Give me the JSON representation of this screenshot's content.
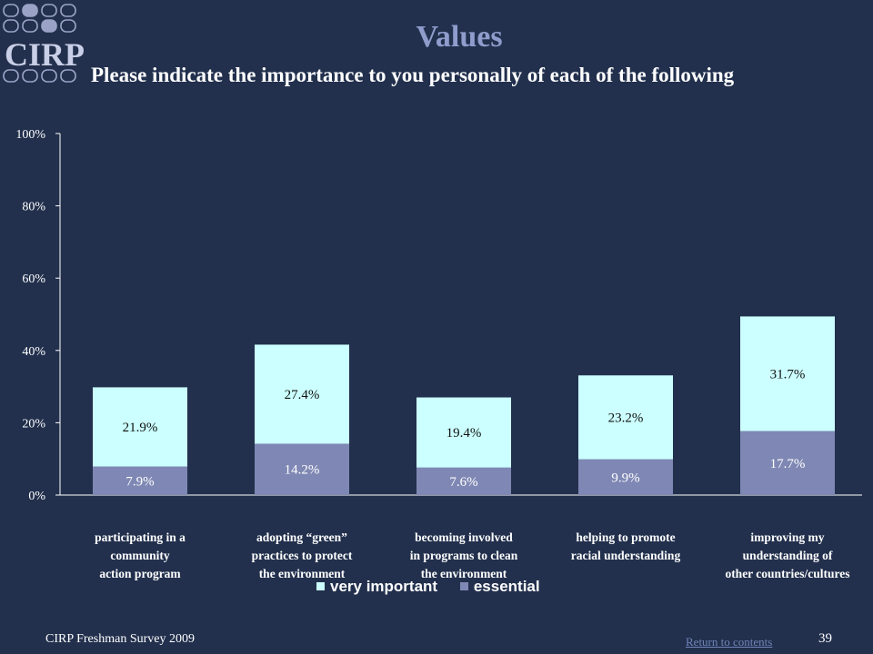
{
  "logo": {
    "text": "CIRP"
  },
  "header": {
    "title": "Values",
    "subtitle": "Please indicate the importance to you personally of each of the following"
  },
  "chart_data": {
    "type": "bar",
    "stacked": true,
    "categories": [
      "participating in a\ncommunity\naction program",
      "adopting “green”\npractices to protect\nthe environment",
      "becoming involved\nin programs to clean\nthe environment",
      "helping to promote\nracial understanding",
      "improving my\nunderstanding of\nother countries/cultures"
    ],
    "series": [
      {
        "name": "essential",
        "values": [
          7.9,
          14.2,
          7.6,
          9.9,
          17.7
        ],
        "color": "#7f88b4"
      },
      {
        "name": "very important",
        "values": [
          21.9,
          27.4,
          19.4,
          23.2,
          31.7
        ],
        "color": "#ccffff"
      }
    ],
    "yticks": [
      "0%",
      "20%",
      "40%",
      "60%",
      "80%",
      "100%"
    ],
    "ylim": [
      0,
      100
    ],
    "grid": false,
    "legend_position": "bottom",
    "legend_order": [
      "very important",
      "essential"
    ],
    "data_labels": {
      "essential": [
        "7.9%",
        "14.2%",
        "7.6%",
        "9.9%",
        "17.7%"
      ],
      "very important": [
        "21.9%",
        "27.4%",
        "19.4%",
        "23.2%",
        "31.7%"
      ]
    }
  },
  "legend": {
    "very_important": "very important",
    "essential": "essential"
  },
  "footer": {
    "survey": "CIRP Freshman Survey 2009",
    "return_link": "Return to contents",
    "page_number": "39"
  }
}
